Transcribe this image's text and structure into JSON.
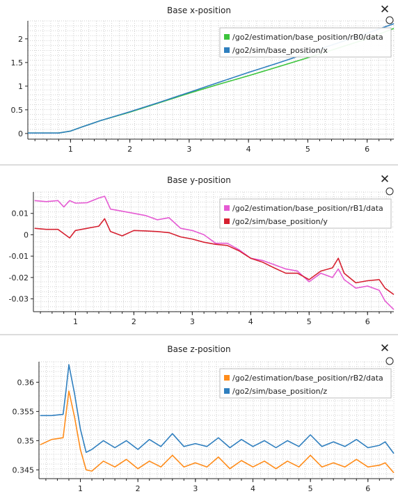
{
  "panels": [
    {
      "title": "Base x-position",
      "chart_data": {
        "type": "line",
        "title": "Base x-position",
        "xlim": [
          0.28,
          6.45
        ],
        "ylim": [
          -0.12,
          2.38
        ],
        "xticks": [
          1,
          2,
          3,
          4,
          5,
          6
        ],
        "yticks": [
          0,
          0.5,
          1,
          1.5,
          2
        ],
        "ytick_labels": [
          "0",
          "0.5",
          "1",
          "1.5",
          "2"
        ],
        "grid": true,
        "legend_position": "top-right",
        "series": [
          {
            "name": "/go2/estimation/base_position/rB0/data",
            "color": "#3cc43c",
            "x": [
              0.28,
              0.8,
              1.0,
              1.2,
              1.5,
              2.0,
              2.5,
              3.0,
              3.5,
              4.0,
              4.5,
              5.0,
              5.5,
              6.0,
              6.45
            ],
            "y": [
              0.01,
              0.01,
              0.05,
              0.14,
              0.27,
              0.45,
              0.65,
              0.85,
              1.04,
              1.22,
              1.41,
              1.6,
              1.8,
              2.0,
              2.22
            ]
          },
          {
            "name": "/go2/sim/base_position/x",
            "color": "#2f7fbf",
            "x": [
              0.28,
              0.8,
              1.0,
              1.2,
              1.5,
              2.0,
              2.5,
              3.0,
              3.5,
              4.0,
              4.5,
              5.0,
              5.5,
              6.0,
              6.45
            ],
            "y": [
              0.01,
              0.01,
              0.05,
              0.14,
              0.27,
              0.46,
              0.66,
              0.87,
              1.08,
              1.29,
              1.49,
              1.7,
              1.91,
              2.12,
              2.32
            ]
          }
        ]
      }
    },
    {
      "title": "Base y-position",
      "chart_data": {
        "type": "line",
        "title": "Base y-position",
        "xlim": [
          0.28,
          6.45
        ],
        "ylim": [
          -0.036,
          0.02
        ],
        "xticks": [
          1,
          2,
          3,
          4,
          5,
          6
        ],
        "yticks": [
          0.01,
          0,
          -0.01,
          -0.02,
          -0.03
        ],
        "ytick_labels": [
          "0.01",
          "0",
          "-0.01",
          "-0.02",
          "-0.03"
        ],
        "grid": true,
        "legend_position": "top-right",
        "series": [
          {
            "name": "/go2/estimation/base_position/rB1/data",
            "color": "#e55ad3",
            "x": [
              0.3,
              0.5,
              0.7,
              0.8,
              0.9,
              1.0,
              1.2,
              1.4,
              1.5,
              1.6,
              1.8,
              2.0,
              2.2,
              2.4,
              2.6,
              2.8,
              3.0,
              3.2,
              3.4,
              3.6,
              3.8,
              4.0,
              4.2,
              4.4,
              4.6,
              4.8,
              5.0,
              5.2,
              5.4,
              5.5,
              5.6,
              5.8,
              6.0,
              6.2,
              6.3,
              6.45
            ],
            "y": [
              0.016,
              0.0155,
              0.016,
              0.013,
              0.016,
              0.0148,
              0.015,
              0.0172,
              0.018,
              0.012,
              0.011,
              0.01,
              0.009,
              0.007,
              0.008,
              0.003,
              0.002,
              0.0,
              -0.004,
              -0.004,
              -0.007,
              -0.011,
              -0.012,
              -0.014,
              -0.016,
              -0.017,
              -0.022,
              -0.018,
              -0.02,
              -0.016,
              -0.021,
              -0.025,
              -0.024,
              -0.026,
              -0.031,
              -0.035
            ]
          },
          {
            "name": "/go2/sim/base_position/y",
            "color": "#d62030",
            "x": [
              0.3,
              0.5,
              0.7,
              0.8,
              0.9,
              1.0,
              1.2,
              1.4,
              1.5,
              1.6,
              1.8,
              2.0,
              2.2,
              2.4,
              2.6,
              2.8,
              3.0,
              3.2,
              3.4,
              3.6,
              3.8,
              4.0,
              4.2,
              4.4,
              4.6,
              4.8,
              5.0,
              5.2,
              5.4,
              5.5,
              5.6,
              5.8,
              6.0,
              6.2,
              6.3,
              6.45
            ],
            "y": [
              0.003,
              0.0025,
              0.0025,
              0.0005,
              -0.0015,
              0.002,
              0.003,
              0.004,
              0.0075,
              0.0015,
              -0.0005,
              0.002,
              0.0018,
              0.0015,
              0.001,
              -0.001,
              -0.002,
              -0.0035,
              -0.0045,
              -0.005,
              -0.0075,
              -0.011,
              -0.0128,
              -0.0155,
              -0.018,
              -0.018,
              -0.021,
              -0.017,
              -0.0155,
              -0.011,
              -0.018,
              -0.0225,
              -0.0215,
              -0.021,
              -0.025,
              -0.028
            ]
          }
        ]
      }
    },
    {
      "title": "Base z-position",
      "chart_data": {
        "type": "line",
        "title": "Base z-position",
        "xlim": [
          0.28,
          6.45
        ],
        "ylim": [
          0.3435,
          0.3635
        ],
        "xticks": [
          1,
          2,
          3,
          4,
          5,
          6
        ],
        "yticks": [
          0.36,
          0.355,
          0.35,
          0.345
        ],
        "ytick_labels": [
          "0.36",
          "0.355",
          "0.35",
          "0.345"
        ],
        "grid": true,
        "legend_position": "top-right",
        "series": [
          {
            "name": "/go2/estimation/base_position/rB2/data",
            "color": "#ff8c1a",
            "x": [
              0.3,
              0.5,
              0.7,
              0.75,
              0.8,
              0.9,
              1.0,
              1.1,
              1.2,
              1.4,
              1.6,
              1.8,
              2.0,
              2.2,
              2.4,
              2.6,
              2.8,
              3.0,
              3.2,
              3.4,
              3.6,
              3.8,
              4.0,
              4.2,
              4.4,
              4.6,
              4.8,
              5.0,
              5.2,
              5.4,
              5.6,
              5.8,
              6.0,
              6.2,
              6.3,
              6.45
            ],
            "y": [
              0.3493,
              0.3502,
              0.3505,
              0.3545,
              0.3585,
              0.354,
              0.3485,
              0.345,
              0.3448,
              0.3465,
              0.3455,
              0.3468,
              0.3452,
              0.3465,
              0.3455,
              0.3475,
              0.3455,
              0.3462,
              0.3455,
              0.3472,
              0.3452,
              0.3466,
              0.3455,
              0.3465,
              0.3452,
              0.3465,
              0.3455,
              0.3475,
              0.3455,
              0.3462,
              0.3455,
              0.3468,
              0.3455,
              0.3458,
              0.3462,
              0.3445
            ]
          },
          {
            "name": "/go2/sim/base_position/z",
            "color": "#2f7fbf",
            "x": [
              0.3,
              0.5,
              0.7,
              0.75,
              0.8,
              0.9,
              1.0,
              1.1,
              1.2,
              1.4,
              1.6,
              1.8,
              2.0,
              2.2,
              2.4,
              2.6,
              2.8,
              3.0,
              3.2,
              3.4,
              3.6,
              3.8,
              4.0,
              4.2,
              4.4,
              4.6,
              4.8,
              5.0,
              5.2,
              5.4,
              5.6,
              5.8,
              6.0,
              6.2,
              6.3,
              6.45
            ],
            "y": [
              0.3543,
              0.3543,
              0.3545,
              0.3585,
              0.363,
              0.358,
              0.352,
              0.348,
              0.3485,
              0.35,
              0.3488,
              0.35,
              0.3485,
              0.3502,
              0.349,
              0.3512,
              0.349,
              0.3495,
              0.349,
              0.3505,
              0.3488,
              0.3502,
              0.349,
              0.35,
              0.3488,
              0.35,
              0.349,
              0.351,
              0.349,
              0.3498,
              0.349,
              0.3502,
              0.3488,
              0.3492,
              0.3498,
              0.3478
            ]
          }
        ]
      }
    }
  ]
}
